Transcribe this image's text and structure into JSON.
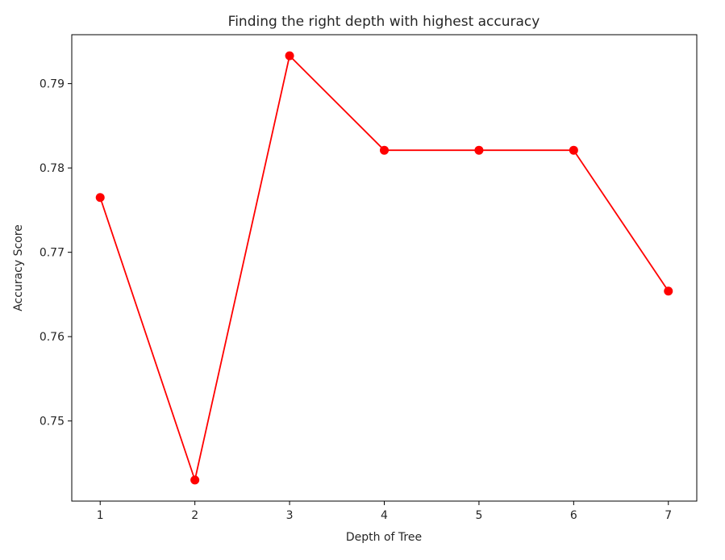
{
  "chart_data": {
    "type": "line",
    "title": "Finding the right depth with highest accuracy",
    "xlabel": "Depth of Tree",
    "ylabel": "Accuracy Score",
    "x": [
      1,
      2,
      3,
      4,
      5,
      6,
      7
    ],
    "series": [
      {
        "values": [
          0.7765,
          0.743,
          0.7933,
          0.7821,
          0.7821,
          0.7821,
          0.7654
        ],
        "color": "#ff0000",
        "marker": "circle"
      }
    ],
    "xticks": [
      "1",
      "2",
      "3",
      "4",
      "5",
      "6",
      "7"
    ],
    "yticks": [
      "0.75",
      "0.76",
      "0.77",
      "0.78",
      "0.79"
    ],
    "xlim": [
      0.7,
      7.3
    ],
    "ylim": [
      0.7405,
      0.7958
    ],
    "grid": false,
    "legend": "none"
  }
}
